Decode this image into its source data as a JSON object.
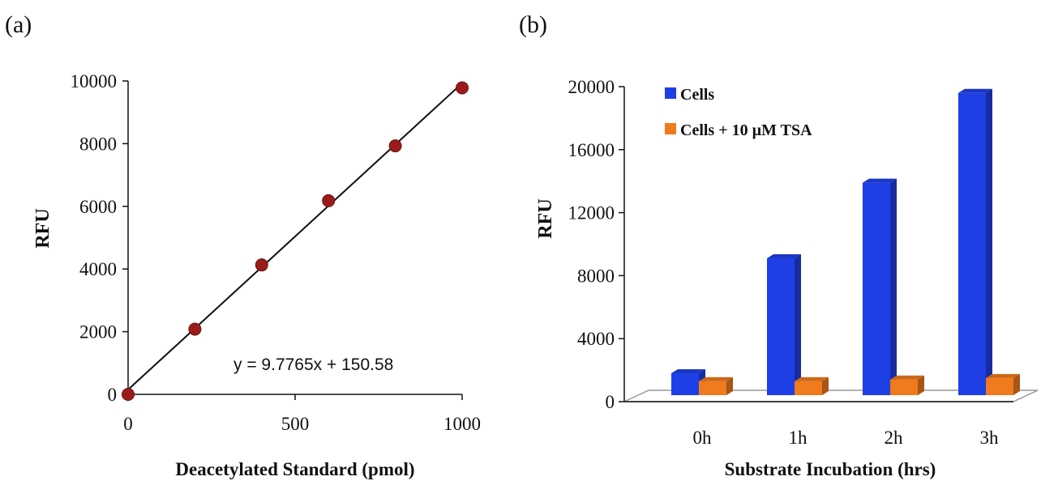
{
  "panels": {
    "a_label": "(a)",
    "b_label": "(b)"
  },
  "chart_data": [
    {
      "type": "scatter",
      "panel": "(a)",
      "xlabel": "Deacetylated Standard (pmol)",
      "ylabel": "RFU",
      "xlim": [
        0,
        1000
      ],
      "ylim": [
        0,
        10000
      ],
      "xticks": [
        0,
        500,
        1000
      ],
      "yticks": [
        0,
        2000,
        4000,
        6000,
        8000,
        10000
      ],
      "points": [
        {
          "x": 0,
          "y": 0
        },
        {
          "x": 200,
          "y": 2080
        },
        {
          "x": 400,
          "y": 4130
        },
        {
          "x": 600,
          "y": 6180
        },
        {
          "x": 800,
          "y": 7930
        },
        {
          "x": 1000,
          "y": 9780
        }
      ],
      "point_color": "#9b1b1b",
      "trendline": {
        "slope": 9.7765,
        "intercept": 150.58,
        "equation": "y = 9.7765x + 150.58"
      },
      "grid": false
    },
    {
      "type": "bar",
      "panel": "(b)",
      "xlabel": "Substrate Incubation (hrs)",
      "ylabel": "RFU",
      "ylim": [
        0,
        20000
      ],
      "yticks": [
        0,
        4000,
        8000,
        12000,
        16000,
        20000
      ],
      "categories": [
        "0h",
        "1h",
        "2h",
        "3h"
      ],
      "series": [
        {
          "name": "Cells",
          "values": [
            1800,
            9100,
            13900,
            19600
          ],
          "color": "#1f3fe6"
        },
        {
          "name": "Cells + 10 µM TSA",
          "values": [
            1300,
            1300,
            1400,
            1500
          ],
          "color": "#f07a1e"
        }
      ],
      "legend_position": "top-left",
      "grid": false,
      "style": "3d"
    }
  ]
}
